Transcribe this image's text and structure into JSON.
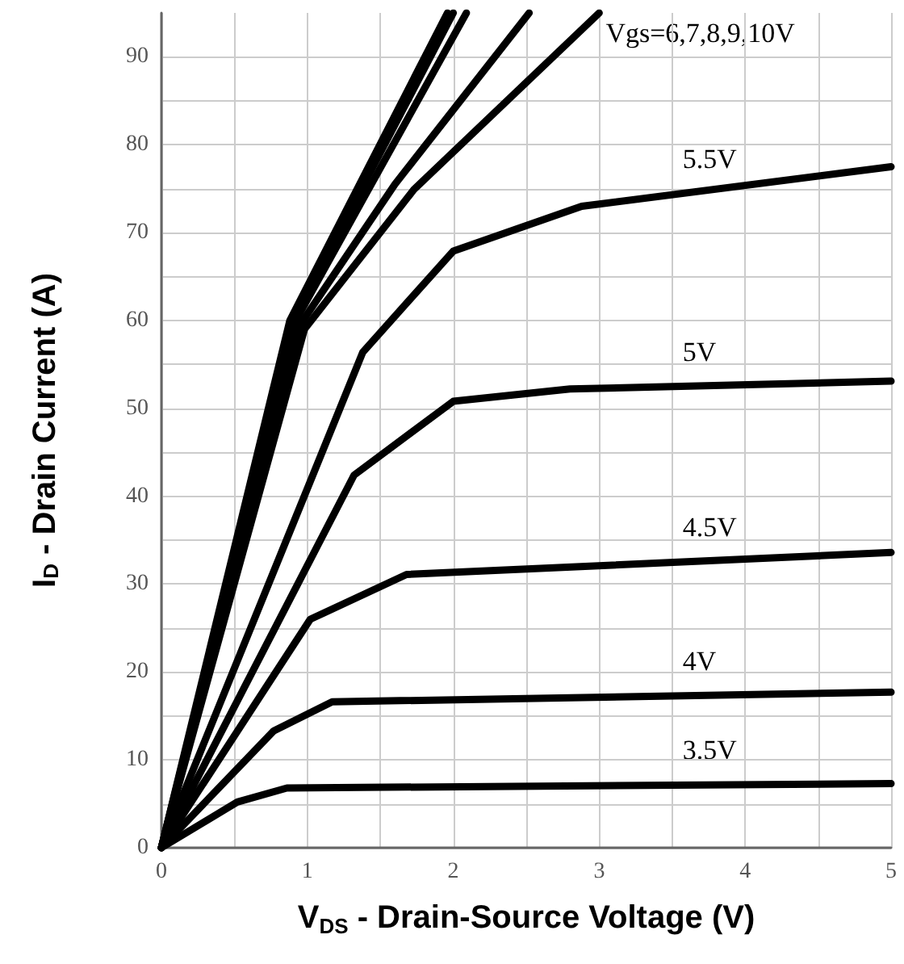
{
  "chart_data": {
    "type": "line",
    "xlabel": "V$_{DS}$ - Drain-Source Voltage (V)",
    "ylabel": "I$_{D}$ - Drain Current (A)",
    "series": [
      {
        "name": "3.5V",
        "color": "#000000",
        "x": [
          0,
          0.52,
          0.86,
          5
        ],
        "values": [
          0,
          5.2,
          6.8,
          7.3
        ]
      },
      {
        "name": "4V",
        "color": "#000000",
        "x": [
          0,
          0.77,
          1.17,
          5
        ],
        "values": [
          0,
          13.3,
          16.6,
          17.7
        ]
      },
      {
        "name": "4.5V",
        "color": "#000000",
        "x": [
          0,
          1.02,
          1.68,
          5
        ],
        "values": [
          0,
          26,
          31.1,
          33.6
        ]
      },
      {
        "name": "5V",
        "color": "#000000",
        "x": [
          0,
          1.32,
          2,
          2.8,
          5
        ],
        "values": [
          0,
          42.4,
          50.8,
          52.2,
          53.1
        ]
      },
      {
        "name": "5.5V",
        "color": "#000000",
        "x": [
          0,
          1.38,
          2,
          2.88,
          5
        ],
        "values": [
          0,
          56.4,
          67.9,
          73,
          77.5
        ]
      },
      {
        "color": "#000000",
        "x": [
          0,
          0.98,
          1.73,
          3
        ],
        "values": [
          0,
          59,
          74.9,
          95
        ]
      },
      {
        "color": "#000000",
        "x": [
          0,
          0.95,
          1.6,
          2.52
        ],
        "values": [
          0,
          59.5,
          75.5,
          95
        ]
      },
      {
        "color": "#000000",
        "x": [
          0,
          0.92,
          2.09
        ],
        "values": [
          0,
          60,
          95
        ]
      },
      {
        "color": "#000000",
        "x": [
          0,
          0.9,
          2
        ],
        "values": [
          0,
          60,
          95
        ]
      },
      {
        "color": "#000000",
        "x": [
          0,
          0.88,
          1.96
        ],
        "values": [
          0,
          60,
          95
        ]
      }
    ],
    "xlim": [
      0,
      5
    ],
    "ylim": [
      0,
      95
    ],
    "xticks": [
      0,
      {
        "value": 0.5,
        "label": null
      },
      1,
      {
        "value": 1.5,
        "label": null
      },
      2,
      {
        "value": 2.5,
        "label": null
      },
      3,
      {
        "value": 3.5,
        "label": null
      },
      4,
      {
        "value": 4.5,
        "label": null
      },
      5
    ],
    "yticks": [
      0,
      {
        "value": 5,
        "label": null
      },
      10,
      {
        "value": 15,
        "label": null
      },
      20,
      {
        "value": 25,
        "label": null
      },
      30,
      {
        "value": 35,
        "label": null
      },
      40,
      {
        "value": 45,
        "label": null
      },
      50,
      {
        "value": 55,
        "label": null
      },
      60,
      {
        "value": 65,
        "label": null
      },
      70,
      {
        "value": 75,
        "label": null
      },
      80,
      {
        "value": 85,
        "label": null
      },
      90
    ],
    "grid": true,
    "marker": "none",
    "line_style": "solid",
    "legend": false,
    "annotations": [
      "Vgs=6,7,8,9,10V"
    ]
  }
}
